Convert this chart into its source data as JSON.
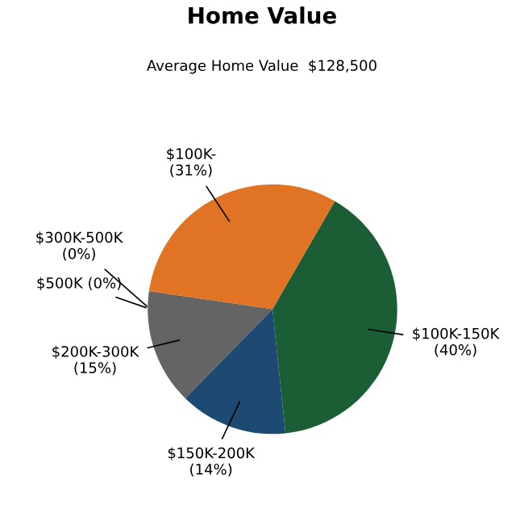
{
  "chart_data": {
    "type": "pie",
    "title": "Home Value",
    "subtitle": "Average Home Value  $128,500",
    "categories": [
      "$100K-150K",
      "$150K-200K",
      "$200K-300K",
      "$300K-500K",
      "$500K",
      "$100K-"
    ],
    "values": [
      40,
      14,
      15,
      0,
      0,
      31
    ],
    "colors": [
      "#1b5e36",
      "#1d4a73",
      "#646464",
      "#8a8a8a",
      "#b0b0b0",
      "#e07424"
    ],
    "value_labels": [
      "(40%)",
      "(14%)",
      "(15%)",
      "(0%)",
      "(0%)",
      "(31%)"
    ],
    "legend": false
  }
}
